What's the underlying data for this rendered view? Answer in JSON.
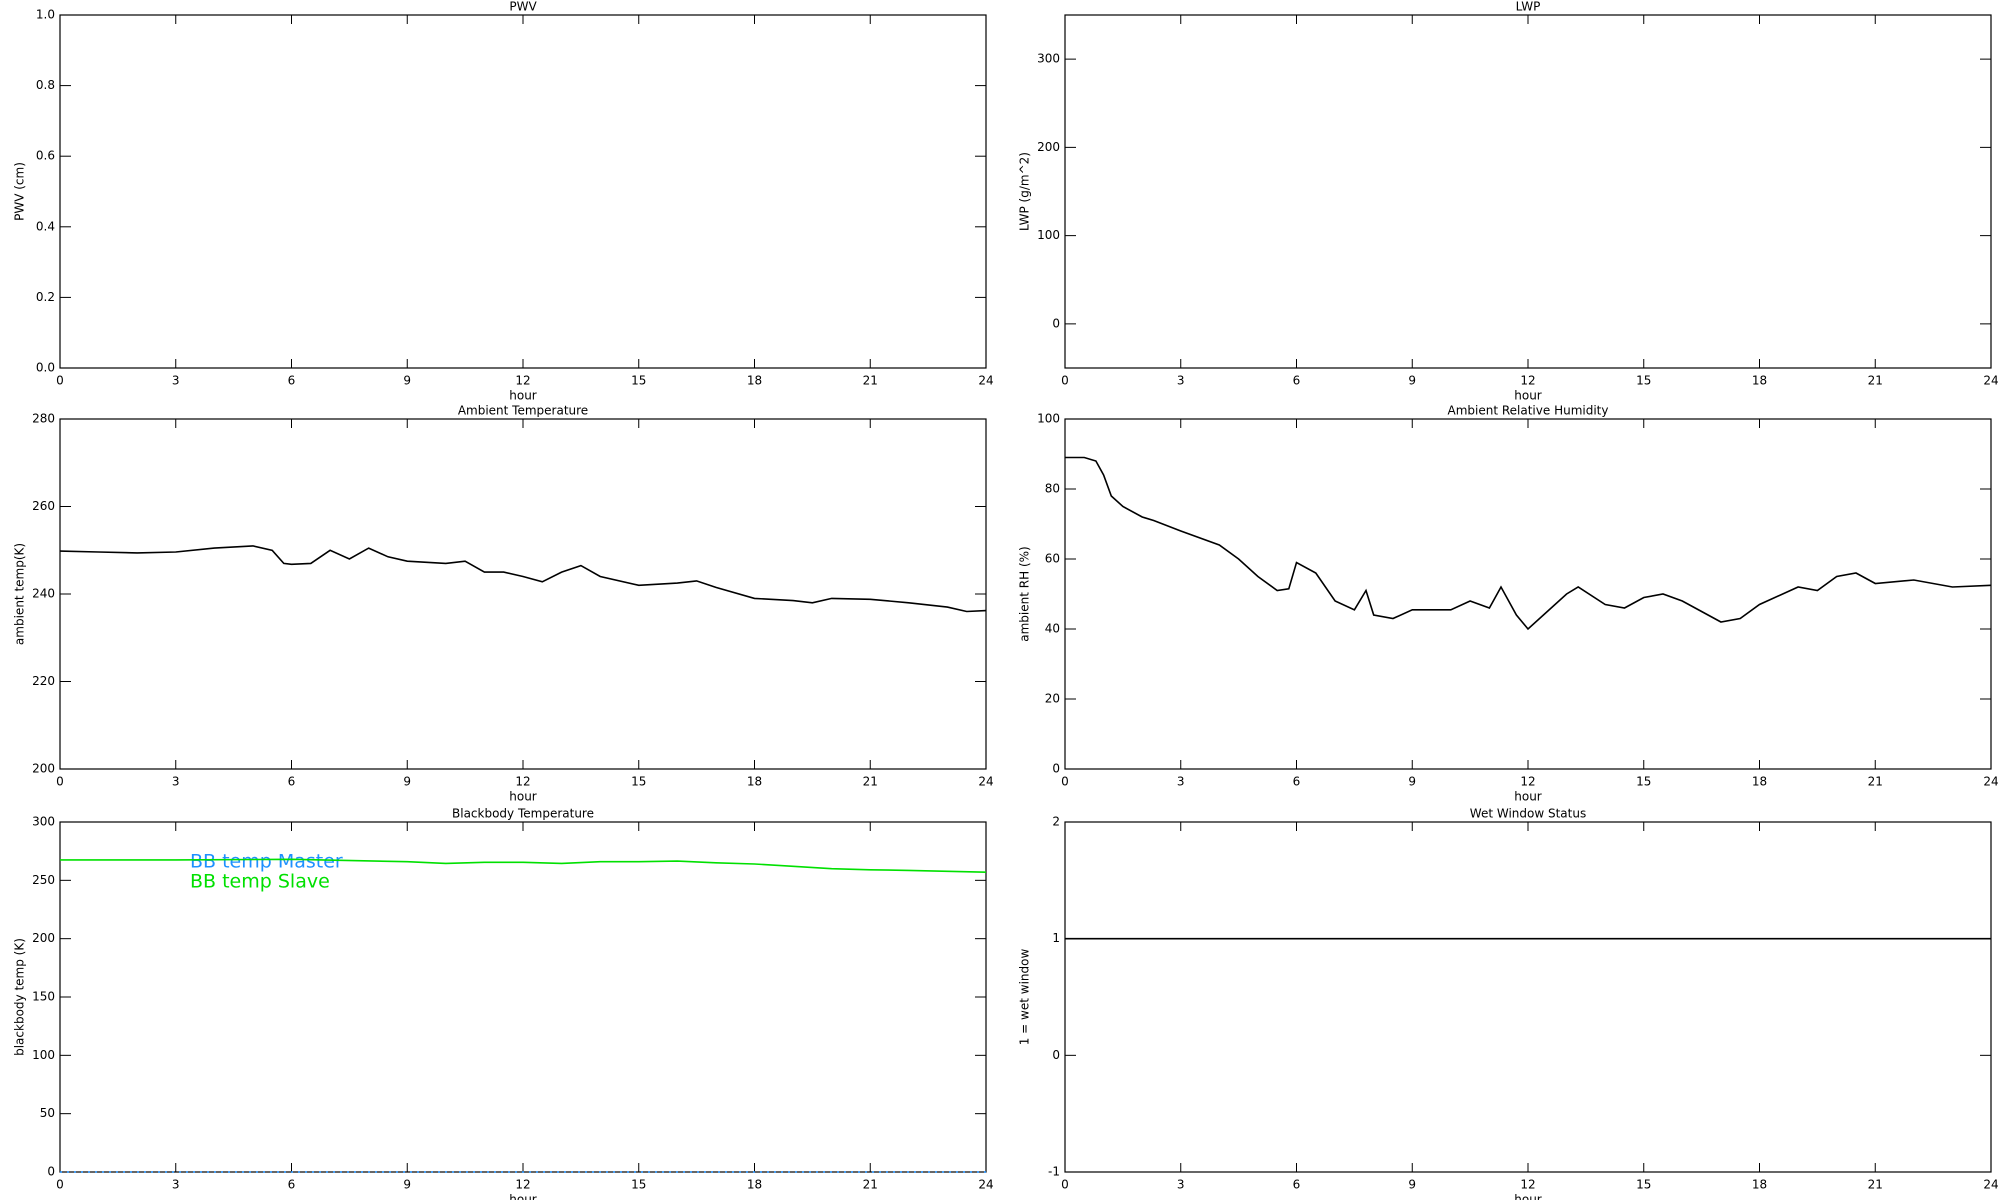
{
  "chart_data": [
    {
      "type": "line",
      "title": "PWV",
      "xlabel": "hour",
      "ylabel": "PWV (cm)",
      "xlim": [
        0,
        24
      ],
      "xticks": [
        0,
        3,
        6,
        9,
        12,
        15,
        18,
        21,
        24
      ],
      "ylim": [
        0,
        1
      ],
      "yticks": [
        {
          "value": 0,
          "label": "0.0"
        },
        {
          "value": 0.2,
          "label": "0.2"
        },
        {
          "value": 0.4,
          "label": "0.4"
        },
        {
          "value": 0.6,
          "label": "0.6"
        },
        {
          "value": 0.8,
          "label": "0.8"
        },
        {
          "value": 1,
          "label": "1.0"
        }
      ]
    },
    {
      "type": "line",
      "title": "LWP",
      "xlabel": "hour",
      "ylabel": "LWP (g/m^2)",
      "xlim": [
        0,
        24
      ],
      "xticks": [
        0,
        3,
        6,
        9,
        12,
        15,
        18,
        21,
        24
      ],
      "ylim": [
        -50,
        350
      ],
      "yticks": [
        0,
        100,
        200,
        300
      ]
    },
    {
      "type": "line",
      "title": "Ambient Temperature",
      "xlabel": "hour",
      "ylabel": "ambient temp(K)",
      "xlim": [
        0,
        24
      ],
      "xticks": [
        0,
        3,
        6,
        9,
        12,
        15,
        18,
        21,
        24
      ],
      "ylim": [
        200,
        280
      ],
      "yticks": [
        200,
        220,
        240,
        260,
        280
      ],
      "x": [
        0,
        1,
        2,
        3,
        4,
        5,
        5.5,
        5.8,
        6,
        6.5,
        7,
        7.5,
        8,
        8.5,
        9,
        10,
        10.5,
        11,
        11.5,
        12,
        12.5,
        13,
        13.5,
        14,
        15,
        16,
        16.5,
        17,
        18,
        19,
        19.5,
        20,
        21,
        22,
        23,
        23.5,
        24
      ],
      "series": [
        {
          "color": "#000000",
          "values": [
            249.8,
            249.6,
            249.4,
            249.6,
            250.5,
            251,
            250,
            247,
            246.8,
            247,
            250,
            248,
            250.5,
            248.5,
            247.5,
            247,
            247.5,
            245,
            245,
            244,
            242.8,
            245,
            246.5,
            244,
            242,
            242.5,
            243,
            241.5,
            239,
            238.5,
            238,
            239,
            238.8,
            238,
            237,
            236,
            236.2
          ]
        }
      ]
    },
    {
      "type": "line",
      "title": "Ambient Relative Humidity",
      "xlabel": "hour",
      "ylabel": "ambient RH (%)",
      "xlim": [
        0,
        24
      ],
      "xticks": [
        0,
        3,
        6,
        9,
        12,
        15,
        18,
        21,
        24
      ],
      "ylim": [
        0,
        100
      ],
      "yticks": [
        0,
        20,
        40,
        60,
        80,
        100
      ],
      "x": [
        0,
        0.5,
        0.8,
        1,
        1.2,
        1.5,
        2,
        2.3,
        3,
        4,
        4.5,
        5,
        5.5,
        5.8,
        6,
        6.5,
        7,
        7.5,
        7.8,
        8,
        8.5,
        9,
        10,
        10.5,
        11,
        11.3,
        11.7,
        12,
        12.5,
        13,
        13.3,
        14,
        14.5,
        15,
        15.5,
        16,
        16.5,
        17,
        17.5,
        18,
        19,
        19.5,
        20,
        20.5,
        21,
        22,
        23,
        24
      ],
      "series": [
        {
          "color": "#000000",
          "values": [
            89,
            89,
            88,
            84,
            78,
            75,
            72,
            71,
            68,
            64,
            60,
            55,
            51,
            51.5,
            59,
            56,
            48,
            45.5,
            51,
            44,
            43,
            45.5,
            45.5,
            48,
            46,
            52,
            44,
            40,
            45,
            50,
            52,
            47,
            46,
            49,
            50,
            48,
            45,
            42,
            43,
            47,
            52,
            51,
            55,
            56,
            53,
            54,
            52,
            52.5
          ]
        }
      ]
    },
    {
      "type": "line",
      "title": "Blackbody Temperature",
      "xlabel": "hour",
      "ylabel": "blackbody temp (K)",
      "xlim": [
        0,
        24
      ],
      "xticks": [
        0,
        3,
        6,
        9,
        12,
        15,
        18,
        21,
        24
      ],
      "ylim": [
        0,
        300
      ],
      "yticks": [
        0,
        50,
        100,
        150,
        200,
        250,
        300
      ],
      "legend": "upper left",
      "x": [
        0,
        3,
        6,
        9,
        10,
        11,
        12,
        13,
        14,
        15,
        16,
        17,
        18,
        19,
        20,
        21,
        22,
        24
      ],
      "series": [
        {
          "name": "BB temp Master",
          "color": "#1e90ff",
          "linestyle": "dotted",
          "values": [
            0,
            0,
            0,
            0,
            0,
            0,
            0,
            0,
            0,
            0,
            0,
            0,
            0,
            0,
            0,
            0,
            0,
            0
          ]
        },
        {
          "name": "BB temp Slave",
          "color": "#00e000",
          "linestyle": "solid",
          "values": [
            267.5,
            267.5,
            268,
            266,
            264.5,
            265.5,
            265.5,
            264.5,
            266,
            266,
            266.5,
            265,
            264,
            262,
            260,
            259,
            258.5,
            257
          ]
        }
      ]
    },
    {
      "type": "line",
      "title": "Wet Window Status",
      "xlabel": "hour",
      "ylabel": "1 = wet window",
      "xlim": [
        0,
        24
      ],
      "xticks": [
        0,
        3,
        6,
        9,
        12,
        15,
        18,
        21,
        24
      ],
      "ylim": [
        -1,
        2
      ],
      "yticks": [
        -1,
        0,
        1,
        2
      ],
      "x": [
        0,
        24
      ],
      "series": [
        {
          "color": "#000000",
          "values": [
            1,
            1
          ]
        }
      ]
    }
  ]
}
